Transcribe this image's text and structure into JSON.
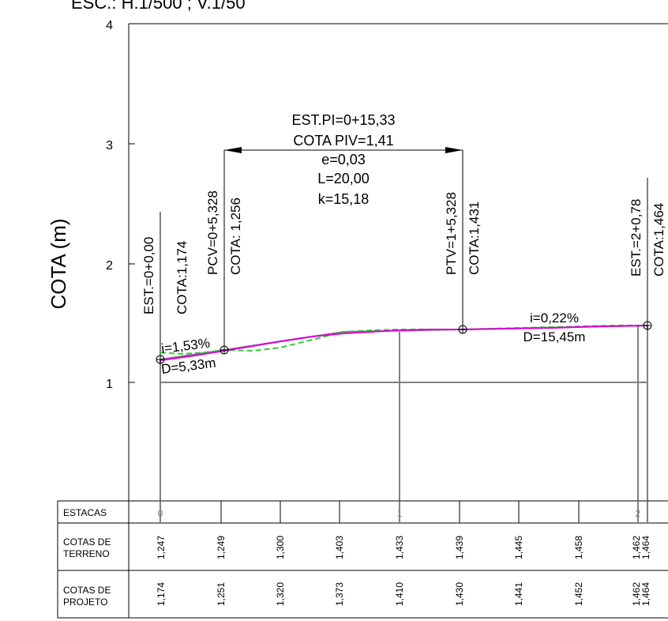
{
  "header": {
    "scale_text": "ESC.: H.1/500 ;  V.1/50"
  },
  "y_axis": {
    "label": "COTA (m)",
    "ticks": [
      "4",
      "3",
      "2",
      "1"
    ]
  },
  "curve_info": {
    "line1": "EST.PI=0+15,33",
    "line2": "COTA PIV=1,41",
    "line3": "e=0,03",
    "line4": "L=20,00",
    "line5": "k=15,18"
  },
  "stations": {
    "start_est": "EST.=0+0,00",
    "start_cota": "COTA:1,174",
    "pcv_est": "PCV=0+5,328",
    "pcv_cota": "COTA: 1,256",
    "ptv_est": "PTV=1+5,328",
    "ptv_cota": "COTA:1,431",
    "end_est": "EST.=2+0,78",
    "end_cota": "COTA:1,464"
  },
  "grades": {
    "left_i": "i=1,53%",
    "left_d": "D=5,33m",
    "right_i": "i=0,22%",
    "right_d": "D=15,45m"
  },
  "table": {
    "row1_label": "ESTACAS",
    "row2_label_a": "COTAS DE",
    "row2_label_b": "TERRENO",
    "row3_label_a": "COTAS DE",
    "row3_label_b": "PROJETO",
    "estacas": [
      "0",
      "1",
      "2"
    ],
    "terreno": [
      "1,247",
      "1,249",
      "1,300",
      "1,403",
      "1,433",
      "1,439",
      "1,445",
      "1,458",
      "1,462",
      "1,464"
    ],
    "projeto": [
      "1,174",
      "1,251",
      "1,320",
      "1,373",
      "1,410",
      "1,430",
      "1,441",
      "1,452",
      "1,462",
      "1,464"
    ]
  },
  "colors": {
    "grid": "#808080",
    "project_line": "#d900d9",
    "terrain_line": "#33cc33",
    "text": "#000000"
  }
}
